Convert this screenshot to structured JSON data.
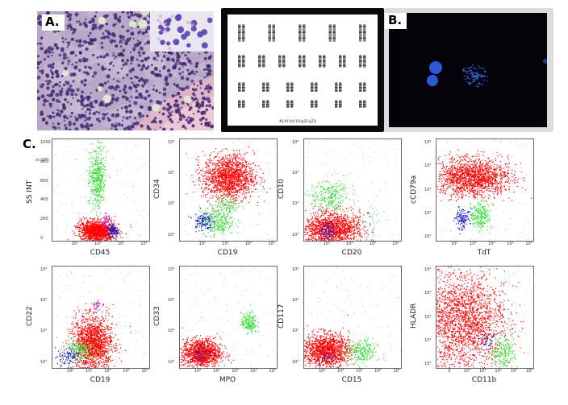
{
  "panels": {
    "a": {
      "label": "A."
    },
    "b": {
      "label": "B."
    },
    "c": {
      "label": "C."
    }
  },
  "karyotype": {
    "caption": "46,XY,t(4;11)(q21;q23)"
  },
  "colors": {
    "red": "#ff0000",
    "green": "#33dd33",
    "blue": "#1a1acc",
    "magenta": "#cc33cc",
    "cyan": "#66cccc"
  },
  "chart_data": [
    {
      "type": "scatter",
      "xlabel": "CD45",
      "ylabel": "SS INT",
      "y_scale": "linear",
      "y_multiplier": "(x 10³)",
      "x_ticks": [
        "10²",
        "10³",
        "10⁴",
        "10⁵"
      ],
      "y_ticks": [
        "1000",
        "800",
        "600",
        "400",
        "200",
        "0"
      ]
    },
    {
      "type": "scatter",
      "xlabel": "CD19",
      "ylabel": "CD34",
      "y_scale": "log",
      "x_ticks": [
        "10²",
        "10³",
        "10⁴",
        "10⁵"
      ],
      "y_ticks": [
        "10⁶",
        "10⁵",
        "10⁴",
        "10³"
      ]
    },
    {
      "type": "scatter",
      "xlabel": "CD20",
      "ylabel": "CD10",
      "y_scale": "log",
      "x_ticks": [
        "10²",
        "10³",
        "10⁴",
        "10⁵"
      ],
      "y_ticks": [
        "10⁶",
        "10⁵",
        "10⁴",
        "10³"
      ]
    },
    {
      "type": "scatter",
      "xlabel": "TdT",
      "ylabel": "cCD79a",
      "y_scale": "log",
      "x_ticks": [
        "10²",
        "10³",
        "10⁴",
        "10⁵",
        "10⁶"
      ],
      "y_ticks": [
        "10⁶",
        "10⁵",
        "10⁴",
        "10³",
        "10²"
      ]
    },
    {
      "type": "scatter",
      "xlabel": "CD19",
      "ylabel": "CD22",
      "y_scale": "log",
      "x_ticks": [
        "10²",
        "10³",
        "10⁴",
        "10⁵",
        "10⁶"
      ],
      "y_ticks": [
        "10⁶",
        "10⁵",
        "10⁴",
        "10³"
      ]
    },
    {
      "type": "scatter",
      "xlabel": "MPO",
      "ylabel": "CD33",
      "y_scale": "log",
      "x_ticks": [
        "10²",
        "10³",
        "10⁴",
        "10⁵",
        "10⁶"
      ],
      "y_ticks": [
        "10⁶",
        "10⁵",
        "10⁴",
        "10³"
      ]
    },
    {
      "type": "scatter",
      "xlabel": "CD15",
      "ylabel": "CD117",
      "y_scale": "log",
      "x_ticks": [
        "10²",
        "10³",
        "10⁴",
        "10⁵",
        "10⁶"
      ],
      "y_ticks": [
        "10⁶",
        "10⁵",
        "10⁴",
        "10³"
      ]
    },
    {
      "type": "scatter",
      "xlabel": "CD11b",
      "ylabel": "HLADR",
      "y_scale": "log",
      "x_ticks": [
        "0",
        "10²",
        "10³",
        "10⁴",
        "10⁵",
        "10⁶"
      ],
      "y_ticks": [
        "10⁶",
        "10⁵",
        "10⁴",
        "10³",
        "10²"
      ]
    }
  ]
}
